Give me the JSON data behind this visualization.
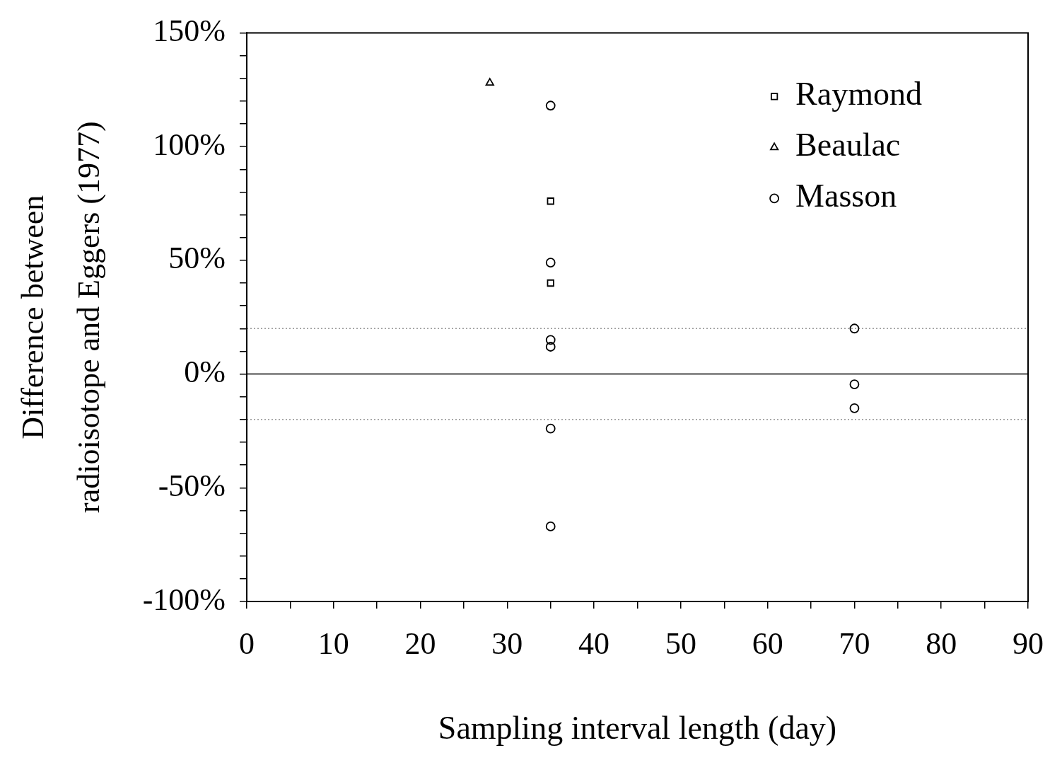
{
  "chart_data": {
    "type": "scatter",
    "xlabel": "Sampling interval length (day)",
    "ylabel": "Difference between radioisotope and Eggers (1977)",
    "xlim": [
      0,
      90
    ],
    "ylim": [
      -100,
      150
    ],
    "xticks": [
      0,
      {
        "value": 5,
        "label": null
      },
      10,
      {
        "value": 15,
        "label": null
      },
      20,
      {
        "value": 25,
        "label": null
      },
      30,
      {
        "value": 35,
        "label": null
      },
      40,
      {
        "value": 45,
        "label": null
      },
      50,
      {
        "value": 55,
        "label": null
      },
      60,
      {
        "value": 65,
        "label": null
      },
      70,
      {
        "value": 75,
        "label": null
      },
      80,
      {
        "value": 85,
        "label": null
      },
      90
    ],
    "yticks": [
      {
        "value": -100,
        "label": "-100%"
      },
      {
        "value": -90,
        "label": null
      },
      {
        "value": -80,
        "label": null
      },
      {
        "value": -70,
        "label": null
      },
      {
        "value": -60,
        "label": null
      },
      {
        "value": -50,
        "label": "-50%"
      },
      {
        "value": -40,
        "label": null
      },
      {
        "value": -30,
        "label": null
      },
      {
        "value": -20,
        "label": null
      },
      {
        "value": -10,
        "label": null
      },
      {
        "value": 0,
        "label": "0%"
      },
      {
        "value": 10,
        "label": null
      },
      {
        "value": 20,
        "label": null
      },
      {
        "value": 30,
        "label": null
      },
      {
        "value": 40,
        "label": null
      },
      {
        "value": 50,
        "label": "50%"
      },
      {
        "value": 60,
        "label": null
      },
      {
        "value": 70,
        "label": null
      },
      {
        "value": 80,
        "label": null
      },
      {
        "value": 90,
        "label": null
      },
      {
        "value": 100,
        "label": "100%"
      },
      {
        "value": 110,
        "label": null
      },
      {
        "value": 120,
        "label": null
      },
      {
        "value": 130,
        "label": null
      },
      {
        "value": 140,
        "label": null
      },
      {
        "value": 150,
        "label": "150%"
      }
    ],
    "grid": false,
    "legend": "top right",
    "series": [
      {
        "name": "Raymond",
        "color": "#000000",
        "marker": "square",
        "x": [
          35,
          35
        ],
        "values": [
          76,
          40
        ]
      },
      {
        "name": "Beaulac",
        "color": "#000000",
        "marker": "triangle",
        "x": [
          28
        ],
        "values": [
          128
        ]
      },
      {
        "name": "Masson",
        "color": "#000000",
        "marker": "circle",
        "x": [
          35,
          35,
          35,
          35,
          35,
          35,
          70,
          70,
          70
        ],
        "values": [
          118,
          49,
          15,
          12,
          -24,
          -67,
          20,
          -4.5,
          -15
        ]
      }
    ],
    "ref_lines": [
      {
        "axis": "y",
        "value": 0,
        "color": "#000000",
        "line_style": "solid"
      },
      {
        "axis": "y",
        "value": 20,
        "color": "#999999",
        "line_style": "dotted"
      },
      {
        "axis": "y",
        "value": -20,
        "color": "#999999",
        "line_style": "dotted"
      }
    ]
  }
}
